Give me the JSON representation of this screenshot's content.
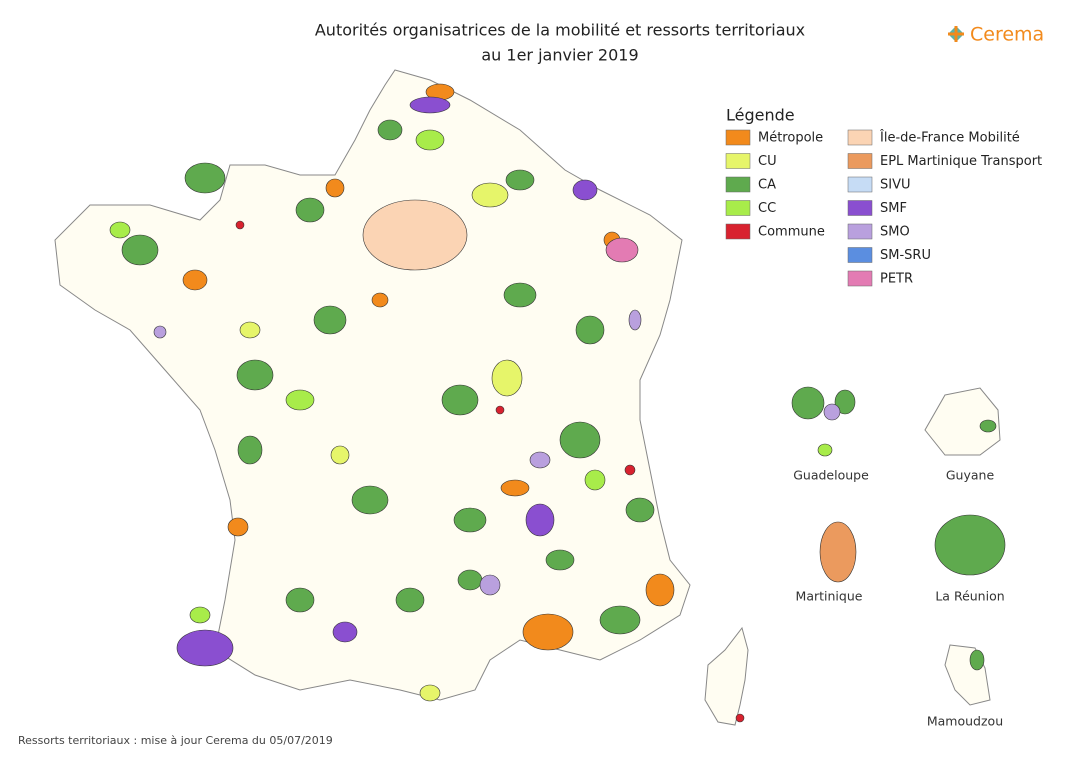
{
  "header": {
    "title": [
      "Autorités organisatrices de la mobilité et ressorts territoriaux",
      "au 1er janvier 2019"
    ],
    "logo": "Cerema"
  },
  "legend": {
    "title": "Légende",
    "columns": [
      [
        {
          "label": "Métropole",
          "color": "#f28a1c"
        },
        {
          "label": "CU",
          "color": "#e6f56a"
        },
        {
          "label": "CA",
          "color": "#5faa4e"
        },
        {
          "label": "CC",
          "color": "#a8ec4a"
        },
        {
          "label": "Commune",
          "color": "#d8222f"
        }
      ],
      [
        {
          "label": "Île-de-France Mobilité",
          "color": "#fbd4b4"
        },
        {
          "label": "EPL Martinique Transport",
          "color": "#eb9a5e"
        },
        {
          "label": "SIVU",
          "color": "#c6dcf5"
        },
        {
          "label": "SMF",
          "color": "#8a4fd0"
        },
        {
          "label": "SMO",
          "color": "#b9a0de"
        },
        {
          "label": "SM-SRU",
          "color": "#5b8ee0"
        },
        {
          "label": "PETR",
          "color": "#e37bb3"
        }
      ]
    ]
  },
  "territories": [
    {
      "label": "Guadeloupe"
    },
    {
      "label": "Guyane"
    },
    {
      "label": "Martinique"
    },
    {
      "label": "La Réunion"
    },
    {
      "label": "Mamoudzou"
    }
  ],
  "footer": "Ressorts territoriaux : mise à jour Cerema du 05/07/2019"
}
